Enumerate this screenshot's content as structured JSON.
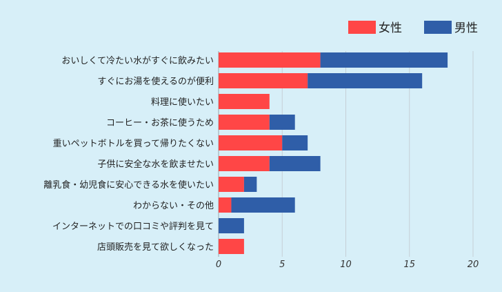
{
  "chart_data": {
    "type": "bar",
    "orientation": "horizontal",
    "stacked": true,
    "categories": [
      "おいしくて冷たい水がすぐに飲みたい",
      "すぐにお湯を使えるのが便利",
      "料理に使いたい",
      "コーヒー・お茶に使うため",
      "重いペットボトルを買って帰りたくない",
      "子供に安全な水を飲ませたい",
      "離乳食・幼児食に安心できる水を使いたい",
      "わからない・その他",
      "インターネットでの口コミや評判を見て",
      "店頭販売を見て欲しくなった"
    ],
    "series": [
      {
        "name": "女性",
        "color": "#ff4646",
        "values": [
          8,
          7,
          4,
          4,
          5,
          4,
          2,
          1,
          0,
          2
        ]
      },
      {
        "name": "男性",
        "color": "#2f5ea8",
        "values": [
          10,
          9,
          0,
          2,
          2,
          4,
          1,
          5,
          2,
          0
        ]
      }
    ],
    "xticks": [
      "0",
      "5",
      "10",
      "15",
      "20"
    ],
    "xlim": [
      0,
      20
    ],
    "grid": "vertical",
    "legend_position": "top-right"
  }
}
